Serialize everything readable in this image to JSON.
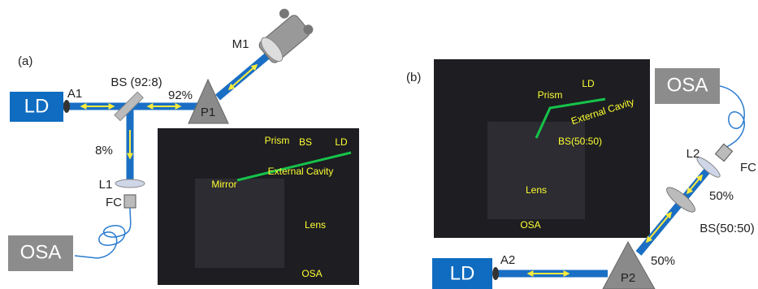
{
  "panel_a": {
    "label": "(a)",
    "ld": "LD",
    "a1": "A1",
    "bs": "BS (92:8)",
    "ratio_main": "92%",
    "p1": "P1",
    "m1": "M1",
    "ratio_tap": "8%",
    "l1": "L1",
    "fc": "FC",
    "osa": "OSA",
    "photo": {
      "prism": "Prism",
      "bs": "BS",
      "ld": "LD",
      "cavity": "External Cavity",
      "mirror": "Mirror",
      "lens": "Lens",
      "osa": "OSA"
    }
  },
  "panel_b": {
    "label": "(b)",
    "ld": "LD",
    "a2": "A2",
    "p2": "P2",
    "ratio_p2": "50%",
    "ratio_bs": "50%",
    "bs": "BS(50:50)",
    "l2": "L2",
    "fc": "FC",
    "osa": "OSA",
    "photo": {
      "prism": "Prism",
      "ld": "LD",
      "cavity": "External Cavity",
      "bs": "BS(50:50)",
      "lens": "Lens",
      "osa": "OSA"
    }
  }
}
